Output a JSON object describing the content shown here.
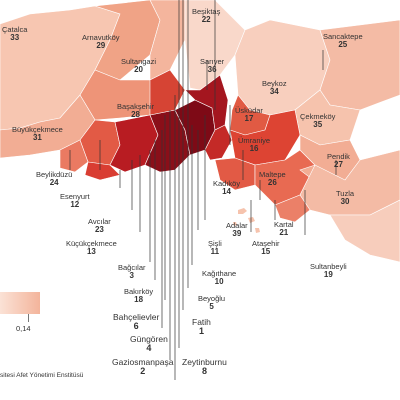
{
  "legend": {
    "max_value": "0,14"
  },
  "source_text": "sitesi Afet Yönetimi Enstitüsü",
  "colors": {
    "sea": "#ffffff",
    "light": "#f7c6b1",
    "mid": "#ec8a73",
    "strong": "#de4a3a",
    "dark": "#b81c22",
    "darkest": "#7e0a16"
  },
  "districts": [
    {
      "name": "Çatalca",
      "rank": "33"
    },
    {
      "name": "Arnavutköy",
      "rank": "29"
    },
    {
      "name": "Sultangazi",
      "rank": "20"
    },
    {
      "name": "Beşiktaş",
      "rank": "22"
    },
    {
      "name": "Sarıyer",
      "rank": "36"
    },
    {
      "name": "Sancaktepe",
      "rank": "25"
    },
    {
      "name": "Beykoz",
      "rank": "34"
    },
    {
      "name": "Başakşehir",
      "rank": "28"
    },
    {
      "name": "Üsküdar",
      "rank": "17"
    },
    {
      "name": "Çekmeköy",
      "rank": "35"
    },
    {
      "name": "Büyükçekmece",
      "rank": "31"
    },
    {
      "name": "Ümraniye",
      "rank": "16"
    },
    {
      "name": "Pendik",
      "rank": "27"
    },
    {
      "name": "Beylikdüzü",
      "rank": "24"
    },
    {
      "name": "Maltepe",
      "rank": "26"
    },
    {
      "name": "Kadıköy",
      "rank": "14"
    },
    {
      "name": "Esenyurt",
      "rank": "12"
    },
    {
      "name": "Tuzla",
      "rank": "30"
    },
    {
      "name": "Adalar",
      "rank": "39"
    },
    {
      "name": "Kartal",
      "rank": "21"
    },
    {
      "name": "Avcılar",
      "rank": "23"
    },
    {
      "name": "Şişli",
      "rank": "11"
    },
    {
      "name": "Ataşehir",
      "rank": "15"
    },
    {
      "name": "Küçükçekmece",
      "rank": "13"
    },
    {
      "name": "Sultanbeyli",
      "rank": "19"
    },
    {
      "name": "Kağıthane",
      "rank": "10"
    },
    {
      "name": "Bağcılar",
      "rank": "3"
    },
    {
      "name": "Beyoğlu",
      "rank": "5"
    },
    {
      "name": "Bakırköy",
      "rank": "18"
    },
    {
      "name": "Fatih",
      "rank": "1"
    },
    {
      "name": "Bahçelievler",
      "rank": "6"
    },
    {
      "name": "Güngören",
      "rank": "4"
    },
    {
      "name": "Gaziosmanpaşa",
      "rank": "2"
    },
    {
      "name": "Zeytinburnu",
      "rank": "8"
    }
  ]
}
